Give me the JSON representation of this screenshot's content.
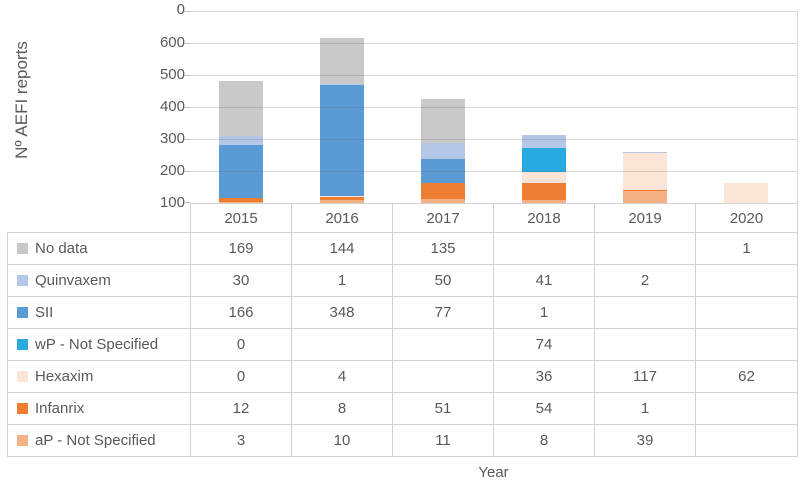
{
  "y_axis_title": "Nº AEFI reports",
  "x_axis_title": "Year",
  "colors": {
    "text": "#595959",
    "gridline": "#d9d9d9",
    "table_border": "#d2d2d2"
  },
  "chart_data": {
    "type": "bar",
    "stacked": true,
    "categories": [
      "2015",
      "2016",
      "2017",
      "2018",
      "2019",
      "2020"
    ],
    "xlabel": "Year",
    "ylabel": "Nº AEFI reports",
    "ylim": [
      0,
      600
    ],
    "y_ticks": [
      "600",
      "500",
      "400",
      "300",
      "200",
      "100",
      "0"
    ],
    "grid": "horizontal",
    "legend_position": "data-table-left-column",
    "series": [
      {
        "name": "No data",
        "color": "#c9c9c9",
        "values": [
          169,
          144,
          135,
          null,
          null,
          1
        ]
      },
      {
        "name": "Quinvaxem",
        "color": "#b4c7e7",
        "values": [
          30,
          1,
          50,
          41,
          2,
          null
        ]
      },
      {
        "name": "SII",
        "color": "#5b9bd5",
        "values": [
          166,
          348,
          77,
          1,
          null,
          null
        ]
      },
      {
        "name": "wP - Not Specified",
        "color": "#28a9e0",
        "values": [
          0,
          null,
          null,
          74,
          null,
          null
        ]
      },
      {
        "name": "Hexaxim",
        "color": "#fbe5d6",
        "values": [
          0,
          4,
          null,
          36,
          117,
          62
        ]
      },
      {
        "name": "Infanrix",
        "color": "#ed7d31",
        "values": [
          12,
          8,
          51,
          54,
          1,
          null
        ]
      },
      {
        "name": "aP - Not Specified",
        "color": "#f4b183",
        "values": [
          3,
          10,
          11,
          8,
          39,
          null
        ]
      }
    ]
  }
}
